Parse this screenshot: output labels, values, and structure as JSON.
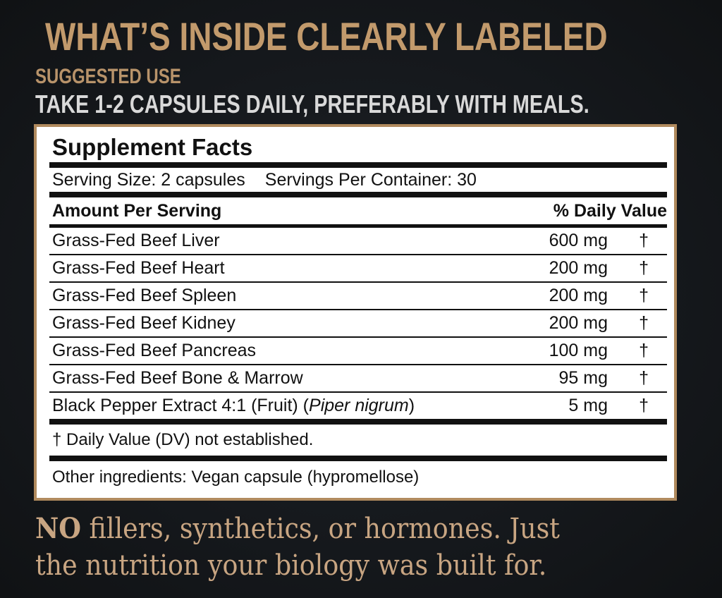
{
  "headline": "WHAT’S INSIDE CLEARLY LABELED",
  "suggested_use": {
    "label": "SUGGESTED USE",
    "text": "TAKE 1-2 CAPSULES DAILY, PREFERABLY WITH MEALS."
  },
  "facts": {
    "title": "Supplement Facts",
    "serving_size": "Serving Size: 2 capsules",
    "servings_per_container": "Servings Per Container: 30",
    "amount_header": "Amount Per Serving",
    "dv_header": "% Daily Value",
    "ingredients": [
      {
        "name": "Grass-Fed Beef Liver",
        "latin": "",
        "amount": "600 mg",
        "dv": "†"
      },
      {
        "name": "Grass-Fed Beef Heart",
        "latin": "",
        "amount": "200 mg",
        "dv": "†"
      },
      {
        "name": "Grass-Fed Beef Spleen",
        "latin": "",
        "amount": "200 mg",
        "dv": "†"
      },
      {
        "name": "Grass-Fed Beef Kidney",
        "latin": "",
        "amount": "200 mg",
        "dv": "†"
      },
      {
        "name": "Grass-Fed Beef Pancreas",
        "latin": "",
        "amount": "100 mg",
        "dv": "†"
      },
      {
        "name": "Grass-Fed Beef Bone & Marrow",
        "latin": "",
        "amount": "95 mg",
        "dv": "†"
      },
      {
        "name": "Black Pepper Extract 4:1 (Fruit) (",
        "latin": "Piper nigrum",
        "name_suffix": ")",
        "amount": "5 mg",
        "dv": "†"
      }
    ],
    "footnote": "† Daily Value (DV) not established.",
    "other_ingredients": "Other ingredients: Vegan capsule (hypromellose)"
  },
  "tagline": {
    "bold_lead": "NO",
    "line1_rest": " fillers, synthetics, or hormones. Just",
    "line2": "the nutrition your biology was built for."
  },
  "colors": {
    "background": "#16191d",
    "gold": "#c29a6c",
    "panel_border": "#b08a5e",
    "body_text_light": "#d9d9d9"
  }
}
